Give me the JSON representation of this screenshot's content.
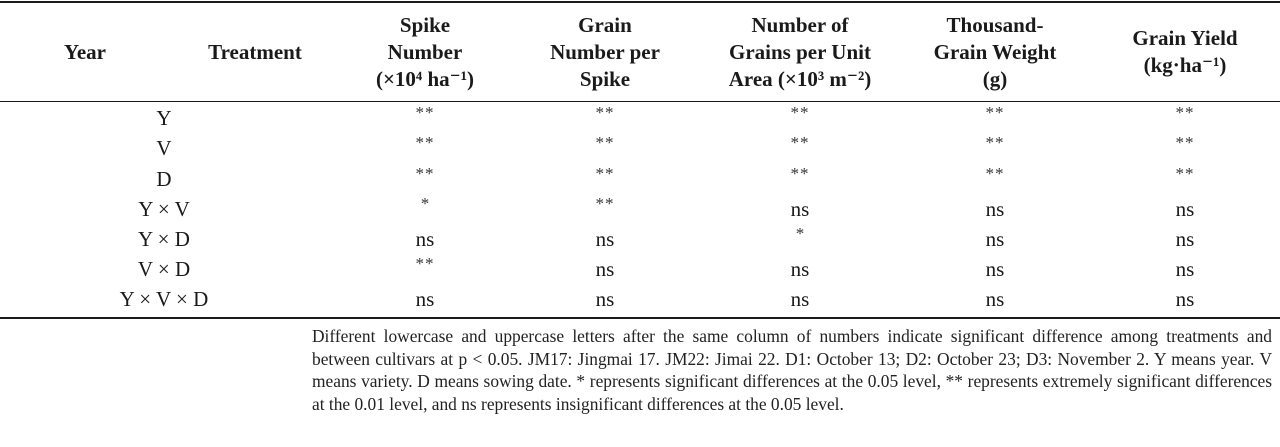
{
  "table": {
    "headers": [
      {
        "key": "year",
        "lines": [
          "Year"
        ]
      },
      {
        "key": "treatment",
        "lines": [
          "Treatment"
        ]
      },
      {
        "key": "spike_number",
        "lines": [
          "Spike",
          "Number",
          "(×10⁴ ha⁻¹)"
        ]
      },
      {
        "key": "grain_number_per_spike",
        "lines": [
          "Grain",
          "Number per",
          "Spike"
        ]
      },
      {
        "key": "grains_per_unit_area",
        "lines": [
          "Number of",
          "Grains per Unit",
          "Area (×10³ m⁻²)"
        ]
      },
      {
        "key": "thousand_grain_weight",
        "lines": [
          "Thousand-",
          "Grain Weight",
          "(g)"
        ]
      },
      {
        "key": "grain_yield",
        "lines": [
          "Grain Yield",
          "(kg·ha⁻¹)"
        ]
      }
    ],
    "rows": [
      {
        "factor": "Y",
        "values": [
          "**",
          "**",
          "**",
          "**",
          "**"
        ]
      },
      {
        "factor": "V",
        "values": [
          "**",
          "**",
          "**",
          "**",
          "**"
        ]
      },
      {
        "factor": "D",
        "values": [
          "**",
          "**",
          "**",
          "**",
          "**"
        ]
      },
      {
        "factor": "Y × V",
        "values": [
          "*",
          "**",
          "ns",
          "ns",
          "ns"
        ]
      },
      {
        "factor": "Y × D",
        "values": [
          "ns",
          "ns",
          "*",
          "ns",
          "ns"
        ]
      },
      {
        "factor": "V × D",
        "values": [
          "**",
          "ns",
          "ns",
          "ns",
          "ns"
        ]
      },
      {
        "factor": "Y × V × D",
        "values": [
          "ns",
          "ns",
          "ns",
          "ns",
          "ns"
        ]
      }
    ]
  },
  "footnote": "Different lowercase and uppercase letters after the same column of numbers indicate significant difference among treatments and between cultivars at p < 0.05. JM17: Jingmai 17. JM22: Jimai 22. D1: October 13; D2: October 23; D3: November 2. Y means year. V means variety. D means sowing date. * represents significant differences at the 0.05 level, ** represents extremely significant differences at the 0.01 level, and ns represents insignificant differences at the 0.05 level."
}
